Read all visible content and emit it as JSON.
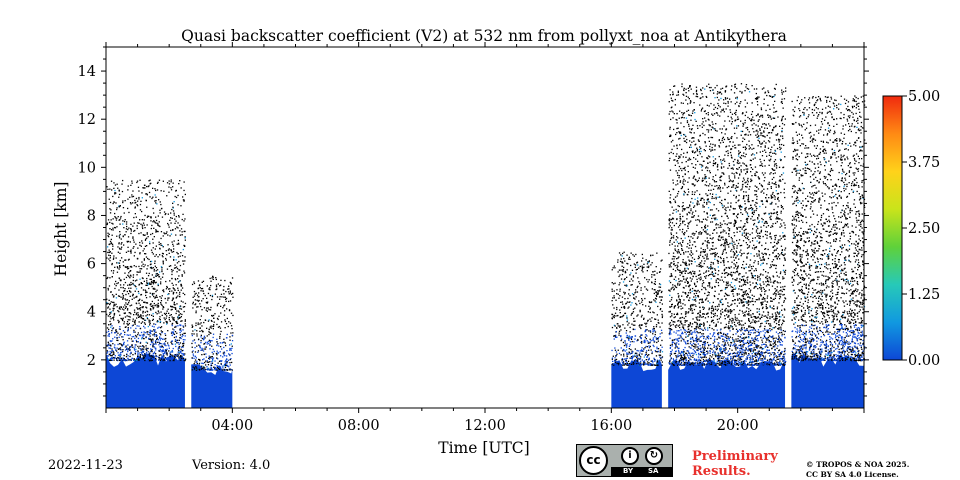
{
  "chart_data": {
    "type": "heatmap",
    "title": "Quasi backscatter coefficient (V2) at 532 nm from pollyxt_noa at Antikythera",
    "xlabel": "Time [UTC]",
    "ylabel": "Height [km]",
    "x_unit": "hours UTC",
    "xlim": [
      0,
      24
    ],
    "ylim": [
      0,
      15
    ],
    "x_ticks": [
      {
        "value": 4,
        "label": "04:00"
      },
      {
        "value": 8,
        "label": "08:00"
      },
      {
        "value": 12,
        "label": "12:00"
      },
      {
        "value": 16,
        "label": "16:00"
      },
      {
        "value": 20,
        "label": "20:00"
      }
    ],
    "y_ticks": [
      {
        "value": 2,
        "label": "2"
      },
      {
        "value": 4,
        "label": "4"
      },
      {
        "value": 6,
        "label": "6"
      },
      {
        "value": 8,
        "label": "8"
      },
      {
        "value": 10,
        "label": "10"
      },
      {
        "value": 12,
        "label": "12"
      },
      {
        "value": 14,
        "label": "14"
      }
    ],
    "colorbar": {
      "min": 0.0,
      "max": 5.0,
      "ticks": [
        "0.00",
        "1.25",
        "2.50",
        "3.75",
        "5.00"
      ],
      "colors": [
        "#0d47d6",
        "#1199e0",
        "#27c9b8",
        "#5fd13a",
        "#c9e41b",
        "#ffd21a",
        "#ff8a14",
        "#f02a0e"
      ]
    },
    "low_value_color": "#000000",
    "measurement_periods": [
      {
        "start": 0.0,
        "end": 2.5,
        "signal_top_km": 2.0,
        "noise_top_km": 9.5
      },
      {
        "start": 2.7,
        "end": 4.0,
        "signal_top_km": 1.6,
        "noise_top_km": 5.5
      },
      {
        "start": 16.0,
        "end": 17.6,
        "signal_top_km": 1.8,
        "noise_top_km": 6.5
      },
      {
        "start": 17.8,
        "end": 21.5,
        "signal_top_km": 1.8,
        "noise_top_km": 13.5
      },
      {
        "start": 21.7,
        "end": 24.0,
        "signal_top_km": 2.0,
        "noise_top_km": 13.0
      }
    ]
  },
  "footer": {
    "date": "2022-11-23",
    "version": "Version: 4.0",
    "preliminary_line1": "Preliminary",
    "preliminary_line2": "Results.",
    "copyright_line1": "© TROPOS & NOA 2025.",
    "copyright_line2": "CC BY SA 4.0 License.",
    "badge_cc": "cc",
    "badge_by": "BY",
    "badge_sa": "SA"
  }
}
